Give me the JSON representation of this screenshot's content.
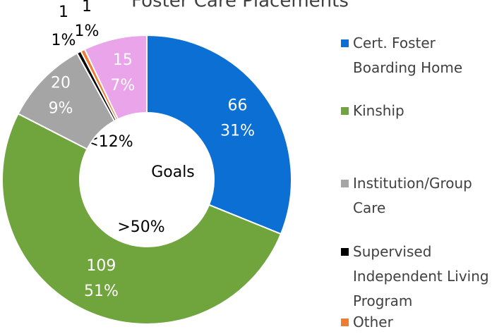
{
  "chart_data": {
    "type": "donut",
    "title": "Foster Care Placements",
    "categories": [
      "Cert. Foster Boarding Home",
      "Kinship",
      "Institution/Group Care",
      "Supervised Independent Living Program",
      "Other",
      null
    ],
    "values": [
      66,
      109,
      20,
      1,
      1,
      15
    ],
    "percents": [
      31,
      51,
      9,
      1,
      1,
      7
    ],
    "percent_labels": [
      "31%",
      "51%",
      "9%",
      "1%",
      "1%",
      "7%"
    ],
    "colors": [
      "#0b6fd4",
      "#70a43c",
      "#a5a5a5",
      "#000000",
      "#ed7d31",
      "#eaa5ea"
    ],
    "annotations": [
      "Goals",
      "<12%",
      ">50%"
    ],
    "legend": "right"
  }
}
